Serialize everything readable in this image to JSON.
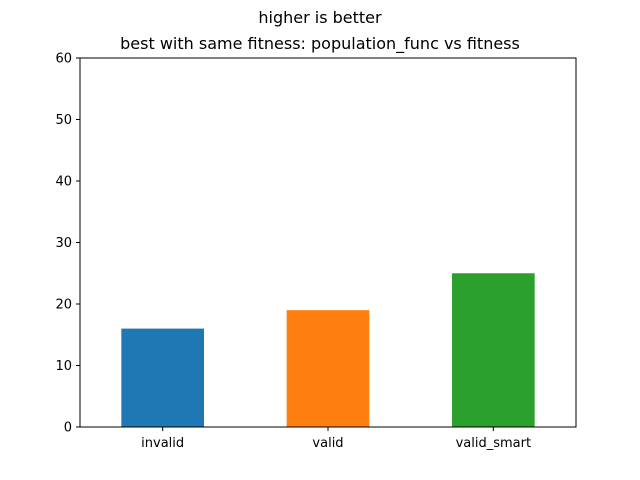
{
  "chart_data": {
    "type": "bar",
    "suptitle": "higher is better",
    "title": "best with same fitness: population_func vs fitness",
    "categories": [
      "invalid",
      "valid",
      "valid_smart"
    ],
    "values": [
      16,
      19,
      25
    ],
    "colors": [
      "#1f77b4",
      "#ff7f0e",
      "#2ca02c"
    ],
    "ylim": [
      0,
      60
    ],
    "yticks": [
      0,
      10,
      20,
      30,
      40,
      50,
      60
    ],
    "xlabel": "",
    "ylabel": "",
    "grid": false
  }
}
